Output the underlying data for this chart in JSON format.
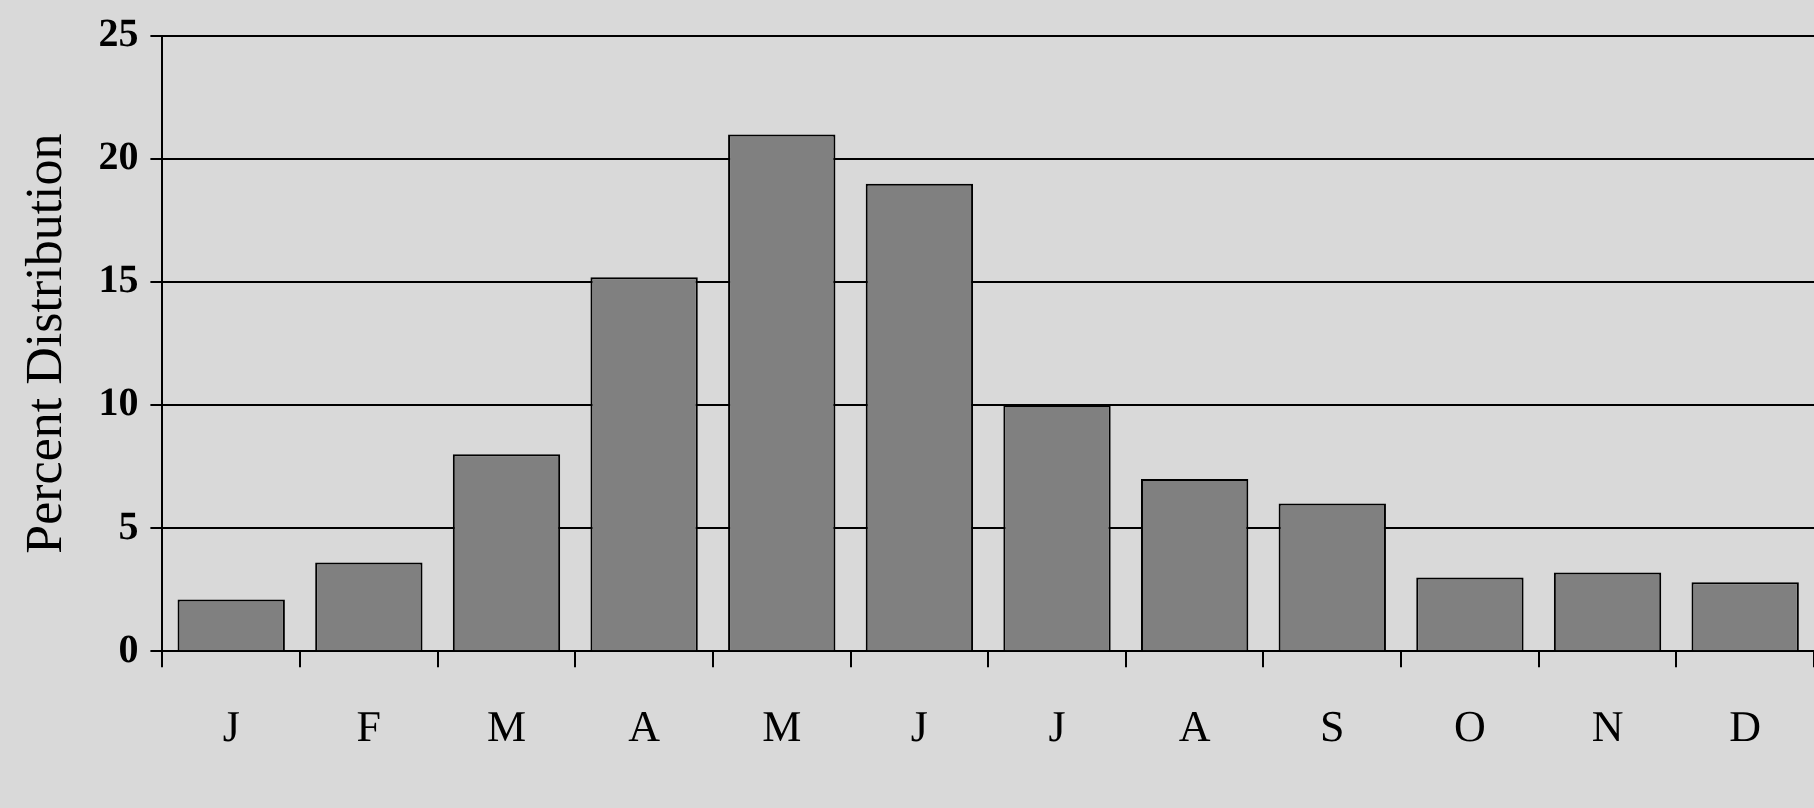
{
  "chart_data": {
    "type": "bar",
    "ylabel": "Percent Distribution",
    "categories": [
      "J",
      "F",
      "M",
      "A",
      "M",
      "J",
      "J",
      "A",
      "S",
      "O",
      "N",
      "D"
    ],
    "values": [
      2.1,
      3.6,
      8,
      15.2,
      21,
      19,
      10,
      7,
      6,
      3,
      3.2,
      2.8
    ],
    "color": "#808080",
    "ylim": [
      0,
      25
    ],
    "yticks": [
      0,
      5,
      10,
      15,
      20,
      25
    ],
    "grid": "y",
    "legend": false
  }
}
